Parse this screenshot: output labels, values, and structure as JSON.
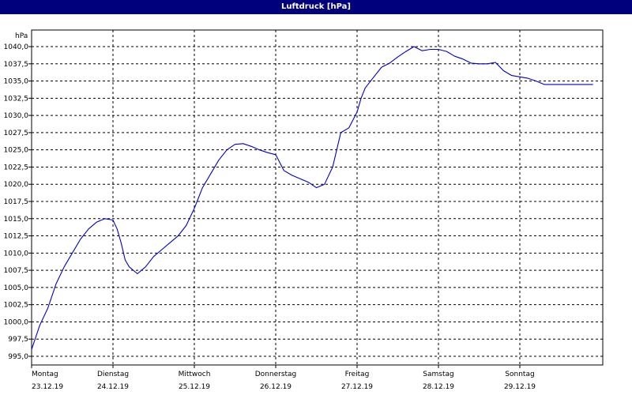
{
  "window": {
    "title": "Luftdruck [hPa]"
  },
  "colors": {
    "titlebar": "#00007c",
    "line": "#0000cc",
    "grid": "#000000",
    "plot_bg": "#ffffff"
  },
  "chart_data": {
    "type": "line",
    "title": "Luftdruck [hPa]",
    "ylabel": "hPa",
    "xlabel": "",
    "ylim": [
      994.0,
      1041.0
    ],
    "xlim": [
      0,
      7
    ],
    "grid": true,
    "legend": "none",
    "yticks": [
      995.0,
      997.5,
      1000.0,
      1002.5,
      1005.0,
      1007.5,
      1010.0,
      1012.5,
      1015.0,
      1017.5,
      1020.0,
      1022.5,
      1025.0,
      1027.5,
      1030.0,
      1032.5,
      1035.0,
      1037.5,
      1040.0
    ],
    "ytick_labels": [
      "995,0",
      "997,5",
      "1000,0",
      "1002,5",
      "1005,0",
      "1007,5",
      "1010,0",
      "1012,5",
      "1015,0",
      "1017,5",
      "1020,0",
      "1022,5",
      "1025,0",
      "1027,5",
      "1030,0",
      "1032,5",
      "1035,0",
      "1037,5",
      "1040,0"
    ],
    "xticks": [
      {
        "day": "Montag",
        "date": "23.12.19"
      },
      {
        "day": "Dienstag",
        "date": "24.12.19"
      },
      {
        "day": "Mittwoch",
        "date": "25.12.19"
      },
      {
        "day": "Donnerstag",
        "date": "26.12.19"
      },
      {
        "day": "Freitag",
        "date": "27.12.19"
      },
      {
        "day": "Samstag",
        "date": "28.12.19"
      },
      {
        "day": "Sonntag",
        "date": "29.12.19"
      }
    ],
    "series": [
      {
        "x": [
          0.0,
          0.1,
          0.2,
          0.3,
          0.4,
          0.5,
          0.6,
          0.7,
          0.8,
          0.9,
          1.0,
          1.05,
          1.1,
          1.15,
          1.2,
          1.3,
          1.4,
          1.5,
          1.6,
          1.7,
          1.8,
          1.9,
          2.0,
          2.1,
          2.2,
          2.3,
          2.4,
          2.5,
          2.6,
          2.7,
          2.8,
          2.9,
          3.0,
          3.1,
          3.2,
          3.3,
          3.4,
          3.5,
          3.6,
          3.7,
          3.8,
          3.9,
          4.0,
          4.05,
          4.1,
          4.2,
          4.3,
          4.4,
          4.5,
          4.6,
          4.7,
          4.8,
          4.9,
          5.0,
          5.1,
          5.2,
          5.3,
          5.4,
          5.5,
          5.6,
          5.7,
          5.8,
          5.9,
          6.0,
          6.1,
          6.2,
          6.3,
          6.4,
          6.5,
          6.6,
          6.7,
          6.8,
          6.9
        ],
        "values": [
          996.0,
          999.5,
          1002.0,
          1005.5,
          1008.0,
          1010.0,
          1012.0,
          1013.5,
          1014.5,
          1015.0,
          1014.8,
          1013.5,
          1011.5,
          1009.0,
          1008.0,
          1007.0,
          1008.0,
          1009.5,
          1010.5,
          1011.5,
          1012.5,
          1014.0,
          1016.5,
          1019.5,
          1021.5,
          1023.5,
          1025.0,
          1025.8,
          1025.9,
          1025.5,
          1025.0,
          1024.6,
          1024.3,
          1022.0,
          1021.3,
          1020.8,
          1020.3,
          1019.5,
          1020.0,
          1022.5,
          1027.5,
          1028.2,
          1030.5,
          1032.5,
          1034.0,
          1035.5,
          1037.0,
          1037.6,
          1038.5,
          1039.3,
          1040.0,
          1039.4,
          1039.6,
          1039.6,
          1039.3,
          1038.6,
          1038.2,
          1037.6,
          1037.5,
          1037.5,
          1037.7,
          1036.5,
          1035.8,
          1035.6,
          1035.4,
          1035.0,
          1034.5,
          1034.5,
          1034.5,
          1034.5,
          1034.5,
          1034.5,
          1034.5
        ]
      }
    ]
  }
}
